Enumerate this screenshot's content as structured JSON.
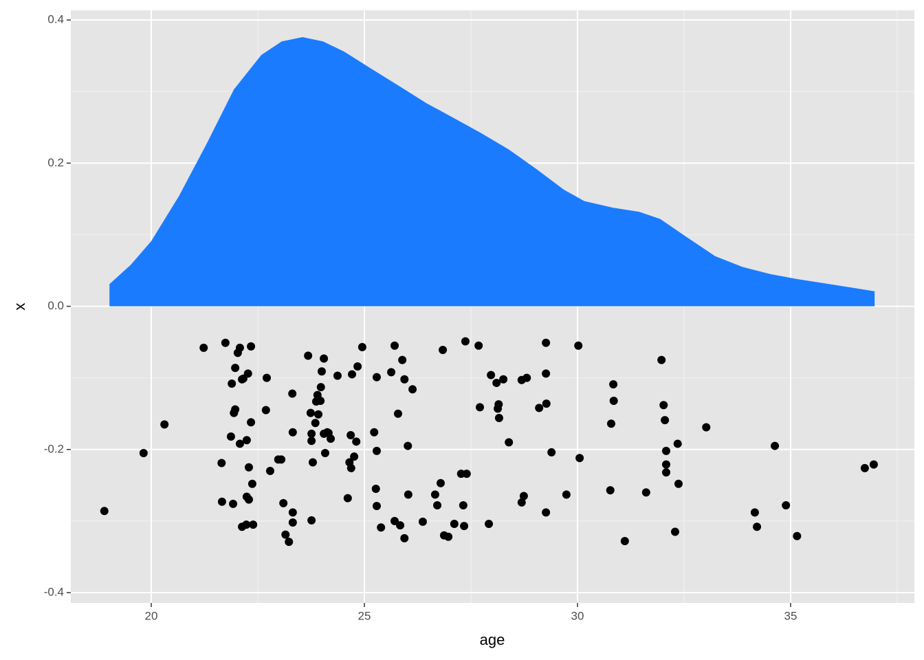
{
  "chart_data": {
    "type": "layered",
    "x_label": "age",
    "y_label": "x",
    "xlim": [
      18.113,
      37.903
    ],
    "ylim": [
      -0.4144,
      0.4135
    ],
    "xticks": [
      20,
      25,
      30,
      35
    ],
    "yticks": [
      -0.4,
      -0.2,
      {
        "value": 0,
        "label": "0.0"
      },
      0.2,
      0.4
    ],
    "minor_xticks": [
      22.5,
      27.5,
      32.5,
      37.5
    ],
    "minor_yticks": [
      -0.3,
      -0.1,
      0.1,
      0.3
    ],
    "grid": true,
    "series": [
      {
        "type": "area",
        "color": "#1b7bff",
        "x": [
          19.02,
          19.52,
          20.0,
          20.65,
          21.29,
          21.94,
          22.58,
          23.06,
          23.55,
          24.03,
          24.52,
          25.16,
          25.81,
          26.45,
          27.1,
          27.74,
          28.39,
          29.03,
          29.68,
          30.16,
          30.81,
          31.45,
          31.94,
          32.58,
          33.23,
          33.87,
          34.52,
          35.16,
          35.81,
          36.45,
          36.97
        ],
        "values": [
          0.031,
          0.058,
          0.091,
          0.154,
          0.226,
          0.303,
          0.351,
          0.37,
          0.376,
          0.37,
          0.356,
          0.332,
          0.308,
          0.284,
          0.263,
          0.242,
          0.219,
          0.192,
          0.163,
          0.147,
          0.138,
          0.132,
          0.122,
          0.096,
          0.07,
          0.055,
          0.045,
          0.038,
          0.032,
          0.026,
          0.021
        ]
      },
      {
        "type": "scatter",
        "color": "#000000",
        "x": [
          18.9,
          19.82,
          20.31,
          21.23,
          21.65,
          21.66,
          21.74,
          21.89,
          21.87,
          21.92,
          21.94,
          21.97,
          21.97,
          22.03,
          22.08,
          22.08,
          22.13,
          22.13,
          22.16,
          22.24,
          22.24,
          22.27,
          22.29,
          22.29,
          22.34,
          22.34,
          22.37,
          22.39,
          22.23,
          22.71,
          22.69,
          22.79,
          22.98,
          23.05,
          23.1,
          23.15,
          23.23,
          23.31,
          23.32,
          23.32,
          23.32,
          23.68,
          23.74,
          23.76,
          23.76,
          23.76,
          23.79,
          23.85,
          23.87,
          23.9,
          23.92,
          23.97,
          23.98,
          24.0,
          24.05,
          24.05,
          24.08,
          24.13,
          24.16,
          24.21,
          24.37,
          24.61,
          24.65,
          24.68,
          24.69,
          24.71,
          24.76,
          24.81,
          24.84,
          24.95,
          25.23,
          25.27,
          25.29,
          25.29,
          25.29,
          25.39,
          25.63,
          25.71,
          25.71,
          25.79,
          25.84,
          25.89,
          25.94,
          25.94,
          26.02,
          26.03,
          26.13,
          26.37,
          26.66,
          26.71,
          26.79,
          26.84,
          26.87,
          26.97,
          27.11,
          27.27,
          27.32,
          27.34,
          27.37,
          27.4,
          27.68,
          27.71,
          27.92,
          27.97,
          28.1,
          28.13,
          28.15,
          28.16,
          28.26,
          28.39,
          28.69,
          28.69,
          28.74,
          28.81,
          29.1,
          29.26,
          29.26,
          29.27,
          29.26,
          29.39,
          29.74,
          30.02,
          30.05,
          30.77,
          30.79,
          30.84,
          30.85,
          31.11,
          31.61,
          31.97,
          32.02,
          32.05,
          32.08,
          32.08,
          32.08,
          32.29,
          32.35,
          32.37,
          33.02,
          34.16,
          34.21,
          34.63,
          34.89,
          35.15,
          36.74,
          36.95
        ],
        "values": [
          -0.286,
          -0.205,
          -0.165,
          -0.058,
          -0.219,
          -0.273,
          -0.051,
          -0.108,
          -0.182,
          -0.276,
          -0.149,
          -0.144,
          -0.086,
          -0.065,
          -0.058,
          -0.192,
          -0.308,
          -0.102,
          -0.101,
          -0.187,
          -0.266,
          -0.094,
          -0.225,
          -0.27,
          -0.056,
          -0.162,
          -0.248,
          -0.305,
          -0.305,
          -0.1,
          -0.145,
          -0.23,
          -0.214,
          -0.214,
          -0.275,
          -0.319,
          -0.329,
          -0.122,
          -0.176,
          -0.288,
          -0.302,
          -0.069,
          -0.149,
          -0.178,
          -0.188,
          -0.299,
          -0.218,
          -0.163,
          -0.133,
          -0.124,
          -0.151,
          -0.132,
          -0.113,
          -0.091,
          -0.073,
          -0.178,
          -0.205,
          -0.176,
          -0.177,
          -0.185,
          -0.097,
          -0.268,
          -0.218,
          -0.18,
          -0.226,
          -0.095,
          -0.21,
          -0.189,
          -0.084,
          -0.057,
          -0.176,
          -0.255,
          -0.279,
          -0.099,
          -0.202,
          -0.309,
          -0.092,
          -0.055,
          -0.3,
          -0.15,
          -0.306,
          -0.075,
          -0.324,
          -0.102,
          -0.195,
          -0.263,
          -0.116,
          -0.301,
          -0.263,
          -0.278,
          -0.247,
          -0.061,
          -0.32,
          -0.322,
          -0.304,
          -0.234,
          -0.278,
          -0.307,
          -0.049,
          -0.234,
          -0.055,
          -0.141,
          -0.304,
          -0.096,
          -0.107,
          -0.143,
          -0.137,
          -0.156,
          -0.102,
          -0.19,
          -0.274,
          -0.103,
          -0.265,
          -0.1,
          -0.142,
          -0.051,
          -0.094,
          -0.136,
          -0.288,
          -0.204,
          -0.263,
          -0.055,
          -0.212,
          -0.257,
          -0.164,
          -0.109,
          -0.132,
          -0.328,
          -0.26,
          -0.075,
          -0.138,
          -0.159,
          -0.202,
          -0.221,
          -0.232,
          -0.315,
          -0.192,
          -0.248,
          -0.169,
          -0.288,
          -0.308,
          -0.195,
          -0.278,
          -0.321,
          -0.226,
          -0.221
        ]
      }
    ]
  }
}
